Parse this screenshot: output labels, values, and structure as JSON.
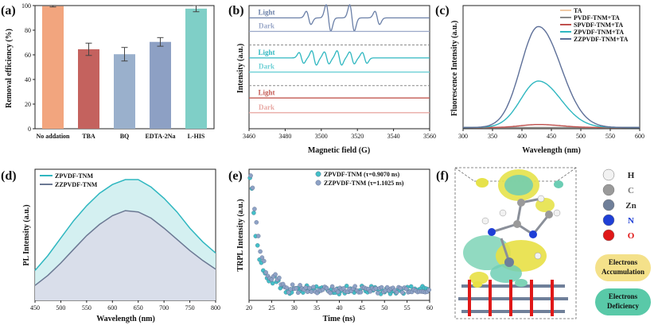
{
  "panels": {
    "a": {
      "label": "(a)"
    },
    "b": {
      "label": "(b)"
    },
    "c": {
      "label": "(c)"
    },
    "d": {
      "label": "(d)"
    },
    "e": {
      "label": "(e)"
    },
    "f": {
      "label": "(f)"
    }
  },
  "chart_data": [
    {
      "id": "a",
      "type": "bar",
      "ylabel": "Removal efficiency (%)",
      "categories": [
        "No addation",
        "TBA",
        "BQ",
        "EDTA-2Na",
        "L-HIS"
      ],
      "values": [
        99.5,
        64.5,
        60.5,
        70.5,
        97.5
      ],
      "errors": [
        0.6,
        5.0,
        5.5,
        3.5,
        2.5
      ],
      "colors": [
        "#f2a57e",
        "#c4625e",
        "#9ab0cc",
        "#8da0c4",
        "#7fcfc7"
      ],
      "ylim": [
        0,
        100
      ],
      "yticks": [
        0,
        20,
        40,
        60,
        80,
        100
      ]
    },
    {
      "id": "b",
      "type": "line",
      "xlabel": "Magnetic field (G)",
      "ylabel": "Intensity (a.u.)",
      "xlim": [
        3460,
        3560
      ],
      "xticks": [
        3460,
        3480,
        3500,
        3520,
        3540,
        3560
      ],
      "traces": [
        {
          "label": "Light",
          "color": "#6b80a8",
          "baseline": 0.9,
          "peaks": [
            {
              "x": 3493,
              "a": 0.055
            },
            {
              "x": 3504,
              "a": 0.11
            },
            {
              "x": 3517,
              "a": 0.11
            },
            {
              "x": 3531,
              "a": 0.055
            }
          ]
        },
        {
          "label": "Dark",
          "color": "#9aa8c8",
          "baseline": 0.79,
          "peaks": []
        },
        {
          "label": "Light",
          "color": "#2fb7c0",
          "baseline": 0.575,
          "peaks": [
            {
              "x": 3489,
              "a": 0.045
            },
            {
              "x": 3496,
              "a": 0.06
            },
            {
              "x": 3503,
              "a": 0.05
            },
            {
              "x": 3510,
              "a": 0.06
            },
            {
              "x": 3517,
              "a": 0.05
            },
            {
              "x": 3524,
              "a": 0.045
            }
          ]
        },
        {
          "label": "Dark",
          "color": "#6fd0d6",
          "baseline": 0.46,
          "peaks": []
        },
        {
          "label": "Light",
          "color": "#c45c55",
          "baseline": 0.25,
          "peaks": []
        },
        {
          "label": "Dark",
          "color": "#e8a9a4",
          "baseline": 0.13,
          "peaks": []
        }
      ],
      "separators": [
        0.68,
        0.35
      ]
    },
    {
      "id": "c",
      "type": "line",
      "xlabel": "Wavelength (nm)",
      "ylabel": "Fluorescence Intensity (a.u.)",
      "xlim": [
        300,
        600
      ],
      "xticks": [
        300,
        350,
        400,
        450,
        500,
        550,
        600
      ],
      "peak_nm": 428,
      "series": [
        {
          "name": "TA",
          "color": "#f0c9a4",
          "peak": 0.0
        },
        {
          "name": "PVDF-TNM+TA",
          "color": "#8a8a8a",
          "peak": 0.0
        },
        {
          "name": "SPVDF-TNM+TA",
          "color": "#c0504d",
          "peak": 0.03
        },
        {
          "name": "ZPVDF-TNM+TA",
          "color": "#2fb7c0",
          "peak": 0.46
        },
        {
          "name": "ZZPVDF-TNM+TA",
          "color": "#5d6f98",
          "peak": 1.0
        }
      ]
    },
    {
      "id": "d",
      "type": "area",
      "xlabel": "Wavelength (nm)",
      "ylabel": "PL Intensity (a.u.)",
      "xlim": [
        450,
        800
      ],
      "xticks": [
        450,
        500,
        550,
        600,
        650,
        700,
        750,
        800
      ],
      "series": [
        {
          "name": "ZPVDF-TNM",
          "color": "#2fb7c0",
          "fill": "#cfeef0",
          "x": [
            450,
            475,
            500,
            525,
            550,
            575,
            600,
            625,
            650,
            675,
            700,
            725,
            750,
            775,
            800
          ],
          "y": [
            0.24,
            0.36,
            0.5,
            0.64,
            0.76,
            0.86,
            0.93,
            0.97,
            0.97,
            0.91,
            0.82,
            0.71,
            0.58,
            0.47,
            0.38
          ]
        },
        {
          "name": "ZZPVDF-TNM",
          "color": "#6b7893",
          "fill": "#d9dce9",
          "x": [
            450,
            475,
            500,
            525,
            550,
            575,
            600,
            625,
            650,
            675,
            700,
            725,
            750,
            775,
            800
          ],
          "y": [
            0.12,
            0.2,
            0.3,
            0.41,
            0.52,
            0.61,
            0.68,
            0.72,
            0.71,
            0.66,
            0.58,
            0.49,
            0.4,
            0.32,
            0.25
          ]
        }
      ]
    },
    {
      "id": "e",
      "type": "scatter",
      "xlabel": "Time (ns)",
      "ylabel": "TRPL Intensity (a.u.)",
      "xlim": [
        20,
        60
      ],
      "xticks": [
        20,
        25,
        30,
        35,
        40,
        45,
        50,
        55,
        60
      ],
      "series": [
        {
          "name": "ZPVDF-TNM (τ=0.9070 ns)",
          "color": "#43c0c8",
          "tau": 0.907
        },
        {
          "name": "ZZPVDF-TNM (τ=1.1025 ns)",
          "color": "#8ea2c6",
          "tau": 1.1025
        }
      ]
    }
  ],
  "legend_f": {
    "atoms": [
      {
        "symbol": "H",
        "color": "#f2f2f2",
        "text_color": "#222222"
      },
      {
        "symbol": "C",
        "color": "#9a9a9a",
        "text_color": "#777777"
      },
      {
        "symbol": "Zn",
        "color": "#6f7f99",
        "text_color": "#333333"
      },
      {
        "symbol": "N",
        "color": "#1f3fd6",
        "text_color": "#1f3fd6"
      },
      {
        "symbol": "O",
        "color": "#e01818",
        "text_color": "#e01818"
      }
    ],
    "accumulation_line1": "Electrons",
    "accumulation_line2": "Accumulation",
    "deficiency_line1": "Electrons",
    "deficiency_line2": "Deficiency",
    "accumulation_color": "#f4e18a",
    "deficiency_color": "#59c9a8"
  }
}
